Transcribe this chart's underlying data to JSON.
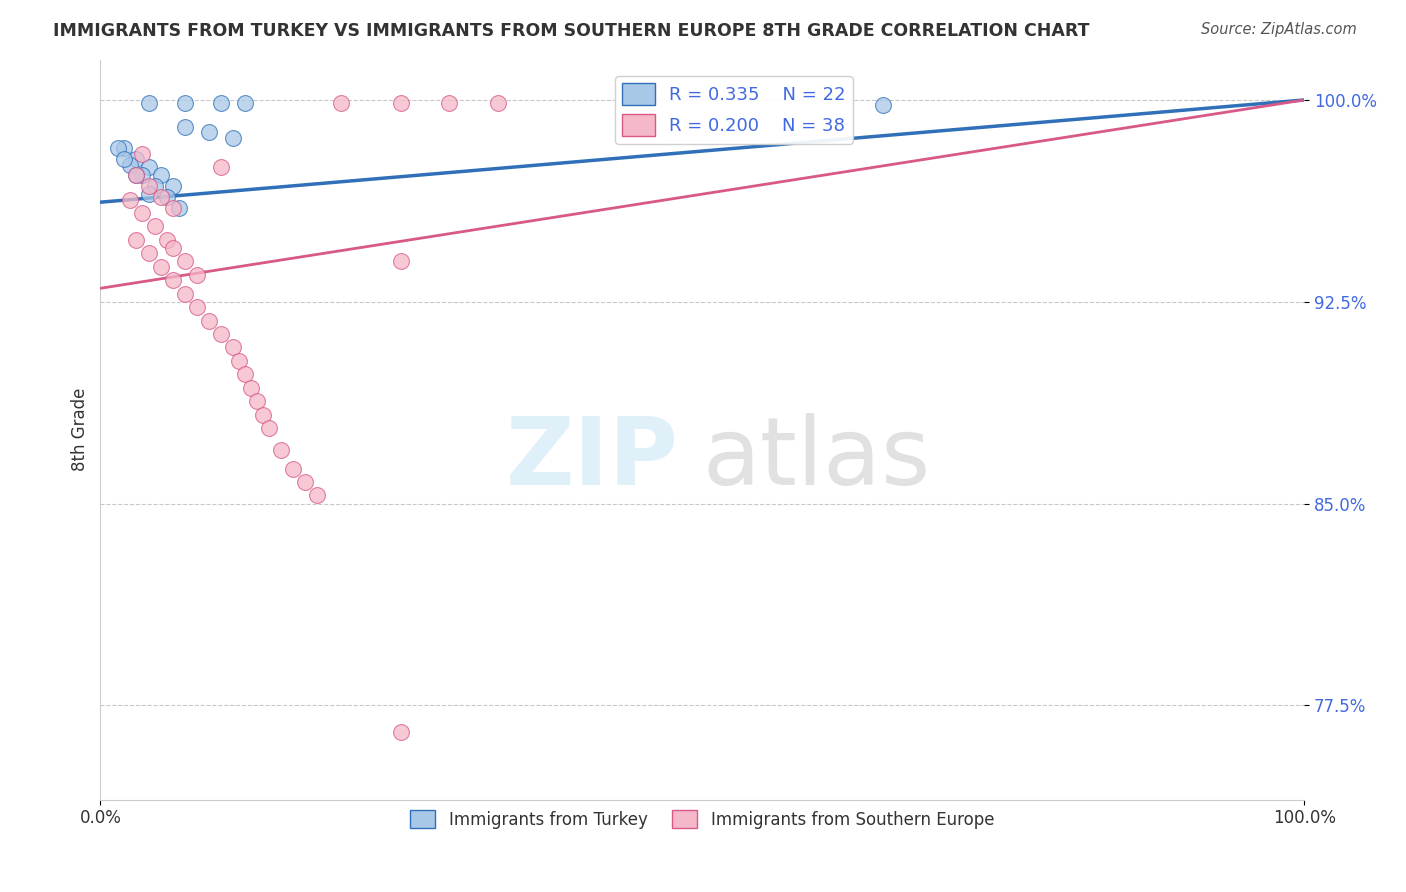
{
  "title": "IMMIGRANTS FROM TURKEY VS IMMIGRANTS FROM SOUTHERN EUROPE 8TH GRADE CORRELATION CHART",
  "source_text": "Source: ZipAtlas.com",
  "ylabel": "8th Grade",
  "xlim": [
    0,
    1.0
  ],
  "ylim": [
    0.74,
    1.015
  ],
  "yticks": [
    0.775,
    0.85,
    0.925,
    1.0
  ],
  "ytick_labels": [
    "77.5%",
    "85.0%",
    "92.5%",
    "100.0%"
  ],
  "xticks": [
    0.0,
    1.0
  ],
  "xtick_labels": [
    "0.0%",
    "100.0%"
  ],
  "legend_R_turkey": "R = 0.335",
  "legend_N_turkey": "N = 22",
  "legend_R_southern": "R = 0.200",
  "legend_N_southern": "N = 38",
  "turkey_color": "#a8c8e8",
  "southern_color": "#f4b8c8",
  "turkey_line_color": "#3070b8",
  "southern_line_color": "#d85888",
  "background_color": "#ffffff",
  "grid_color": "#bbbbbb",
  "turkey_line_x0": 0.0,
  "turkey_line_y0": 0.962,
  "turkey_line_x1": 1.0,
  "turkey_line_y1": 1.0,
  "southern_line_x0": 0.0,
  "southern_line_y0": 0.93,
  "southern_line_x1": 1.0,
  "southern_line_y1": 1.0,
  "turkey_scatter_x": [
    0.04,
    0.07,
    0.1,
    0.12,
    0.07,
    0.09,
    0.11,
    0.02,
    0.03,
    0.04,
    0.05,
    0.06,
    0.025,
    0.035,
    0.045,
    0.055,
    0.065,
    0.015,
    0.02,
    0.03,
    0.04,
    0.65
  ],
  "turkey_scatter_y": [
    0.999,
    0.999,
    0.999,
    0.999,
    0.99,
    0.988,
    0.986,
    0.982,
    0.978,
    0.975,
    0.972,
    0.968,
    0.976,
    0.972,
    0.968,
    0.964,
    0.96,
    0.982,
    0.978,
    0.972,
    0.965,
    0.998
  ],
  "southern_scatter_x": [
    0.2,
    0.25,
    0.29,
    0.33,
    0.035,
    0.1,
    0.03,
    0.04,
    0.05,
    0.06,
    0.025,
    0.035,
    0.045,
    0.055,
    0.03,
    0.04,
    0.05,
    0.06,
    0.07,
    0.08,
    0.09,
    0.1,
    0.11,
    0.115,
    0.12,
    0.125,
    0.13,
    0.135,
    0.14,
    0.15,
    0.16,
    0.17,
    0.18,
    0.06,
    0.07,
    0.08,
    0.25,
    0.25
  ],
  "southern_scatter_y": [
    0.999,
    0.999,
    0.999,
    0.999,
    0.98,
    0.975,
    0.972,
    0.968,
    0.964,
    0.96,
    0.963,
    0.958,
    0.953,
    0.948,
    0.948,
    0.943,
    0.938,
    0.933,
    0.928,
    0.923,
    0.918,
    0.913,
    0.908,
    0.903,
    0.898,
    0.893,
    0.888,
    0.883,
    0.878,
    0.87,
    0.863,
    0.858,
    0.853,
    0.945,
    0.94,
    0.935,
    0.94,
    0.765
  ]
}
